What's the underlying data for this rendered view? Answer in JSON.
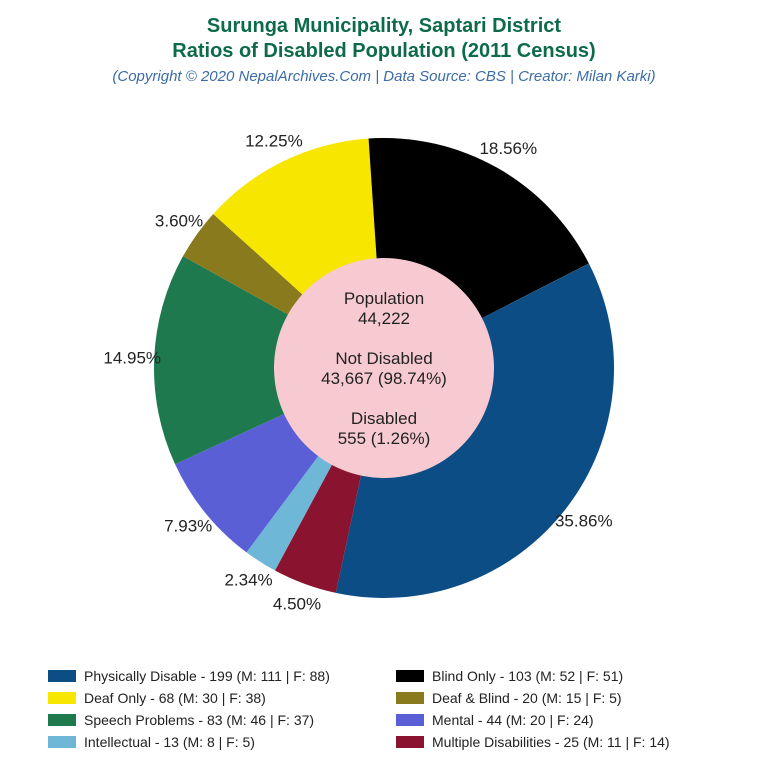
{
  "title": {
    "line1": "Surunga Municipality, Saptari District",
    "line2": "Ratios of Disabled Population (2011 Census)",
    "color": "#0e6b4a",
    "fontsize": 20,
    "weight": "bold"
  },
  "subtitle": {
    "text": "(Copyright © 2020 NepalArchives.Com | Data Source: CBS | Creator: Milan Karki)",
    "color": "#3b6ca8",
    "fontsize": 15,
    "style": "italic"
  },
  "chart": {
    "type": "pie",
    "background_color": "#ffffff",
    "outer_radius": 230,
    "inner_radius": 110,
    "center_fill": "#f7c9d1",
    "label_fontsize": 17,
    "label_color": "#222222",
    "start_angle_deg": 63,
    "direction": "clockwise",
    "slices": [
      {
        "key": "physically_disable",
        "percent": 35.86,
        "color": "#0d4d85",
        "label": "35.86%"
      },
      {
        "key": "multiple_disabilities",
        "percent": 4.5,
        "color": "#8a1430",
        "label": "4.50%"
      },
      {
        "key": "intellectual",
        "percent": 2.34,
        "color": "#6fb7d6",
        "label": "2.34%"
      },
      {
        "key": "mental",
        "percent": 7.93,
        "color": "#5a5fd6",
        "label": "7.93%"
      },
      {
        "key": "speech_problems",
        "percent": 14.95,
        "color": "#1e7a4e",
        "label": "14.95%"
      },
      {
        "key": "deaf_blind",
        "percent": 3.6,
        "color": "#8a7a1e",
        "label": "3.60%"
      },
      {
        "key": "deaf_only",
        "percent": 12.25,
        "color": "#f6e600",
        "label": "12.25%"
      },
      {
        "key": "blind_only",
        "percent": 18.56,
        "color": "#000000",
        "label": "18.56%"
      }
    ],
    "center_text": {
      "lines": [
        "Population",
        "44,222",
        "",
        "Not Disabled",
        "43,667 (98.74%)",
        "",
        "Disabled",
        "555 (1.26%)"
      ],
      "fontsize": 17,
      "color": "#222222"
    }
  },
  "legend": {
    "fontsize": 14,
    "text_color": "#222222",
    "swatch_w": 28,
    "swatch_h": 12,
    "items": [
      {
        "color": "#0d4d85",
        "label": "Physically Disable - 199 (M: 111 | F: 88)"
      },
      {
        "color": "#000000",
        "label": "Blind Only - 103 (M: 52 | F: 51)"
      },
      {
        "color": "#f6e600",
        "label": "Deaf Only - 68 (M: 30 | F: 38)"
      },
      {
        "color": "#8a7a1e",
        "label": "Deaf & Blind - 20 (M: 15 | F: 5)"
      },
      {
        "color": "#1e7a4e",
        "label": "Speech Problems - 83 (M: 46 | F: 37)"
      },
      {
        "color": "#5a5fd6",
        "label": "Mental - 44 (M: 20 | F: 24)"
      },
      {
        "color": "#6fb7d6",
        "label": "Intellectual - 13 (M: 8 | F: 5)"
      },
      {
        "color": "#8a1430",
        "label": "Multiple Disabilities - 25 (M: 11 | F: 14)"
      }
    ]
  }
}
